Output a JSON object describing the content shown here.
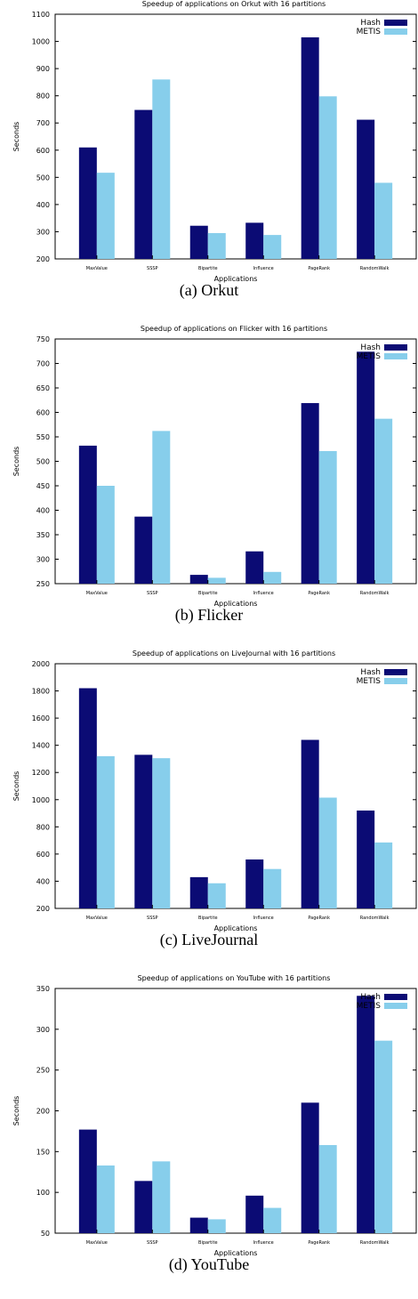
{
  "colors": {
    "hash": "#0b0b74",
    "metis": "#87ceeb"
  },
  "legend": [
    "Hash",
    "METIS"
  ],
  "captions": [
    "(a)  Orkut",
    "(b)  Flicker",
    "(c)  LiveJournal",
    "(d)  YouTube"
  ],
  "chart_data": [
    {
      "type": "bar",
      "title": "Speedup of applications on Orkut with 16 partitions",
      "xlabel": "Applications",
      "ylabel": "Seconds",
      "categories": [
        "MaxValue",
        "SSSP",
        "Bipartite",
        "Influence",
        "PageRank",
        "RandomWalk"
      ],
      "ylim": [
        200,
        1100
      ],
      "yticks": [
        200,
        300,
        400,
        500,
        600,
        700,
        800,
        900,
        1000,
        1100
      ],
      "series": [
        {
          "name": "Hash",
          "values": [
            610,
            748,
            322,
            333,
            1015,
            712
          ]
        },
        {
          "name": "METIS",
          "values": [
            517,
            860,
            295,
            288,
            798,
            480
          ]
        }
      ]
    },
    {
      "type": "bar",
      "title": "Speedup of applications on Flicker with 16 partitions",
      "xlabel": "Applications",
      "ylabel": "Seconds",
      "categories": [
        "MaxValue",
        "SSSP",
        "Bipartite",
        "Influence",
        "PageRank",
        "RandomWalk"
      ],
      "ylim": [
        250,
        750
      ],
      "yticks": [
        250,
        300,
        350,
        400,
        450,
        500,
        550,
        600,
        650,
        700,
        750
      ],
      "series": [
        {
          "name": "Hash",
          "values": [
            532,
            387,
            268,
            316,
            619,
            724
          ]
        },
        {
          "name": "METIS",
          "values": [
            450,
            562,
            262,
            274,
            521,
            587
          ]
        }
      ]
    },
    {
      "type": "bar",
      "title": "Speedup of applications on LiveJournal with 16 partitions",
      "xlabel": "Applications",
      "ylabel": "Seconds",
      "categories": [
        "MaxValue",
        "SSSP",
        "Bipartite",
        "Influence",
        "PageRank",
        "RandomWalk"
      ],
      "ylim": [
        200,
        2000
      ],
      "yticks": [
        200,
        400,
        600,
        800,
        1000,
        1200,
        1400,
        1600,
        1800,
        2000
      ],
      "series": [
        {
          "name": "Hash",
          "values": [
            1820,
            1330,
            430,
            560,
            1440,
            920
          ]
        },
        {
          "name": "METIS",
          "values": [
            1320,
            1305,
            385,
            490,
            1015,
            685
          ]
        }
      ]
    },
    {
      "type": "bar",
      "title": "Speedup of applications on YouTube with 16 partitions",
      "xlabel": "Applications",
      "ylabel": "Seconds",
      "categories": [
        "MaxValue",
        "SSSP",
        "Bipartite",
        "Influence",
        "PageRank",
        "RandomWalk"
      ],
      "ylim": [
        50,
        350
      ],
      "yticks": [
        50,
        100,
        150,
        200,
        250,
        300,
        350
      ],
      "series": [
        {
          "name": "Hash",
          "values": [
            177,
            114,
            69,
            96,
            210,
            341
          ]
        },
        {
          "name": "METIS",
          "values": [
            133,
            138,
            67,
            81,
            158,
            286
          ]
        }
      ]
    }
  ]
}
